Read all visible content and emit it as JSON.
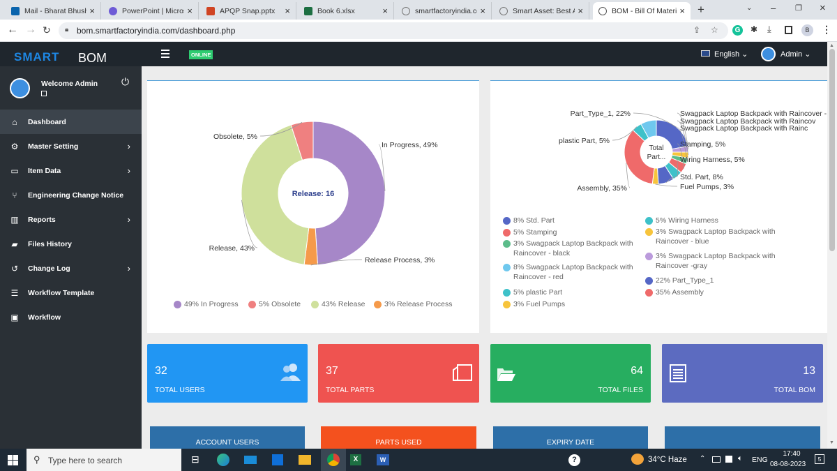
{
  "browser": {
    "tabs": [
      {
        "label": "Mail - Bharat Bhushan",
        "color": "#0a64ad"
      },
      {
        "label": "PowerPoint | Microsoft",
        "color": "#6e5bd6"
      },
      {
        "label": "APQP Snap.pptx",
        "color": "#d04423"
      },
      {
        "label": "Book 6.xlsx",
        "color": "#1d6f42"
      },
      {
        "label": "smartfactoryindia.com",
        "color": "#888888"
      },
      {
        "label": "Smart Asset: Best Ass",
        "color": "#888888"
      },
      {
        "label": "BOM - Bill Of Materia",
        "color": "#555555"
      }
    ],
    "url": "bom.smartfactoryindia.com/dashboard.php",
    "profile_initial": "B"
  },
  "header": {
    "logo_smart": "SMART",
    "logo_bom": "BOM",
    "online": "ONLINE",
    "language": "English",
    "user": "Admin"
  },
  "sidebar": {
    "welcome": "Welcome Admin",
    "items": [
      {
        "label": "Dashboard",
        "icon": "⌂",
        "chev": ""
      },
      {
        "label": "Master Setting",
        "icon": "⚙",
        "chev": "›"
      },
      {
        "label": "Item Data",
        "icon": "▭",
        "chev": "›"
      },
      {
        "label": "Engineering Change Notice",
        "icon": "⑂",
        "chev": ""
      },
      {
        "label": "Reports",
        "icon": "▥",
        "chev": "›"
      },
      {
        "label": "Files History",
        "icon": "▰",
        "chev": ""
      },
      {
        "label": "Change Log",
        "icon": "↺",
        "chev": "›"
      },
      {
        "label": "Workflow Template",
        "icon": "☰",
        "chev": ""
      },
      {
        "label": "Workflow",
        "icon": "▣",
        "chev": ""
      }
    ]
  },
  "chart_data": [
    {
      "type": "pie",
      "center_label": "Release: 16",
      "labels": [
        "In Progress",
        "Release Process",
        "Release",
        "Obsolete"
      ],
      "values": [
        49,
        3,
        43,
        5
      ],
      "colors": [
        "#a687c8",
        "#f59a4a",
        "#cfe09c",
        "#ef8080"
      ],
      "slice_labels": [
        "In Progress, 49%",
        "Release Process, 3%",
        "Release, 43%",
        "Obsolete, 5%"
      ],
      "legend": [
        "49% In Progress",
        "5% Obsolete",
        "43% Release",
        "3% Release Process"
      ],
      "legend_colors": [
        "#a687c8",
        "#ef8080",
        "#cfe09c",
        "#f59a4a"
      ]
    },
    {
      "type": "pie",
      "center_label": "Total Part...",
      "labels": [
        "Part_Type_1",
        "Swagpack Laptop Backpack with Raincover - gray",
        "Swagpack Laptop Backpack with Raincover - blue",
        "Swagpack Laptop Backpack with Raincover - black",
        "Stamping",
        "Wiring Harness",
        "Std. Part",
        "Fuel Pumps",
        "Assembly",
        "plastic Part",
        "Swagpack Laptop Backpack with Raincover - red"
      ],
      "values": [
        22,
        3,
        3,
        3,
        5,
        5,
        8,
        3,
        35,
        5,
        8
      ],
      "colors": [
        "#5567c6",
        "#bb9bdc",
        "#f7c43c",
        "#5cbc8a",
        "#ef6a6a",
        "#3ec1c9",
        "#5567c6",
        "#f7c43c",
        "#ef6a6a",
        "#3ec1c9",
        "#6fc8ee"
      ],
      "callouts": {
        "top_left": "Part_Type_1, 22%",
        "left": "plastic Part, 5%",
        "bottom": "Assembly, 35%",
        "right": [
          "Swagpack Laptop Backpack with Raincover -",
          "Swagpack Laptop Backpack with Raincov",
          "Swagpack Laptop Backpack with Rainc",
          "Stamping, 5%",
          "Wiring Harness, 5%",
          "Std. Part, 8%",
          "Fuel Pumps, 3%"
        ]
      },
      "legend_left": [
        {
          "text": "8% Std. Part",
          "color": "#5567c6"
        },
        {
          "text": "5% Stamping",
          "color": "#ef6a6a"
        },
        {
          "text": "3% Swagpack Laptop Backpack with Raincover - black",
          "color": "#5cbc8a"
        },
        {
          "text": "8% Swagpack Laptop Backpack with Raincover - red",
          "color": "#6fc8ee"
        },
        {
          "text": "5% plastic Part",
          "color": "#3ec1c9"
        },
        {
          "text": "3% Fuel Pumps",
          "color": "#f7c43c"
        }
      ],
      "legend_right": [
        {
          "text": "5% Wiring Harness",
          "color": "#3ec1c9"
        },
        {
          "text": "3% Swagpack Laptop Backpack with Raincover - blue",
          "color": "#f7c43c"
        },
        {
          "text": "3% Swagpack Laptop Backpack with Raincover -gray",
          "color": "#bb9bdc"
        },
        {
          "text": "22% Part_Type_1",
          "color": "#5567c6"
        },
        {
          "text": "35% Assembly",
          "color": "#ef6a6a"
        }
      ]
    }
  ],
  "stats": [
    {
      "value": "32",
      "label": "TOTAL USERS",
      "color": "#2196f3"
    },
    {
      "value": "37",
      "label": "TOTAL PARTS",
      "color": "#ef5350"
    },
    {
      "value": "64",
      "label": "TOTAL FILES",
      "color": "#27ae60"
    },
    {
      "value": "13",
      "label": "TOTAL BOM",
      "color": "#5c6bc0"
    }
  ],
  "bottom_panels": [
    {
      "label": "ACCOUNT USERS",
      "color": "#2d6fa8"
    },
    {
      "label": "PARTS USED",
      "color": "#f4511e"
    },
    {
      "label": "EXPIRY DATE",
      "color": "#2d6fa8"
    },
    {
      "label": "",
      "color": "#2d6fa8"
    }
  ],
  "taskbar": {
    "search_placeholder": "Type here to search",
    "weather": "34°C  Haze",
    "lang": "ENG",
    "time": "17:40",
    "date": "08-08-2023",
    "notifications": "5"
  }
}
